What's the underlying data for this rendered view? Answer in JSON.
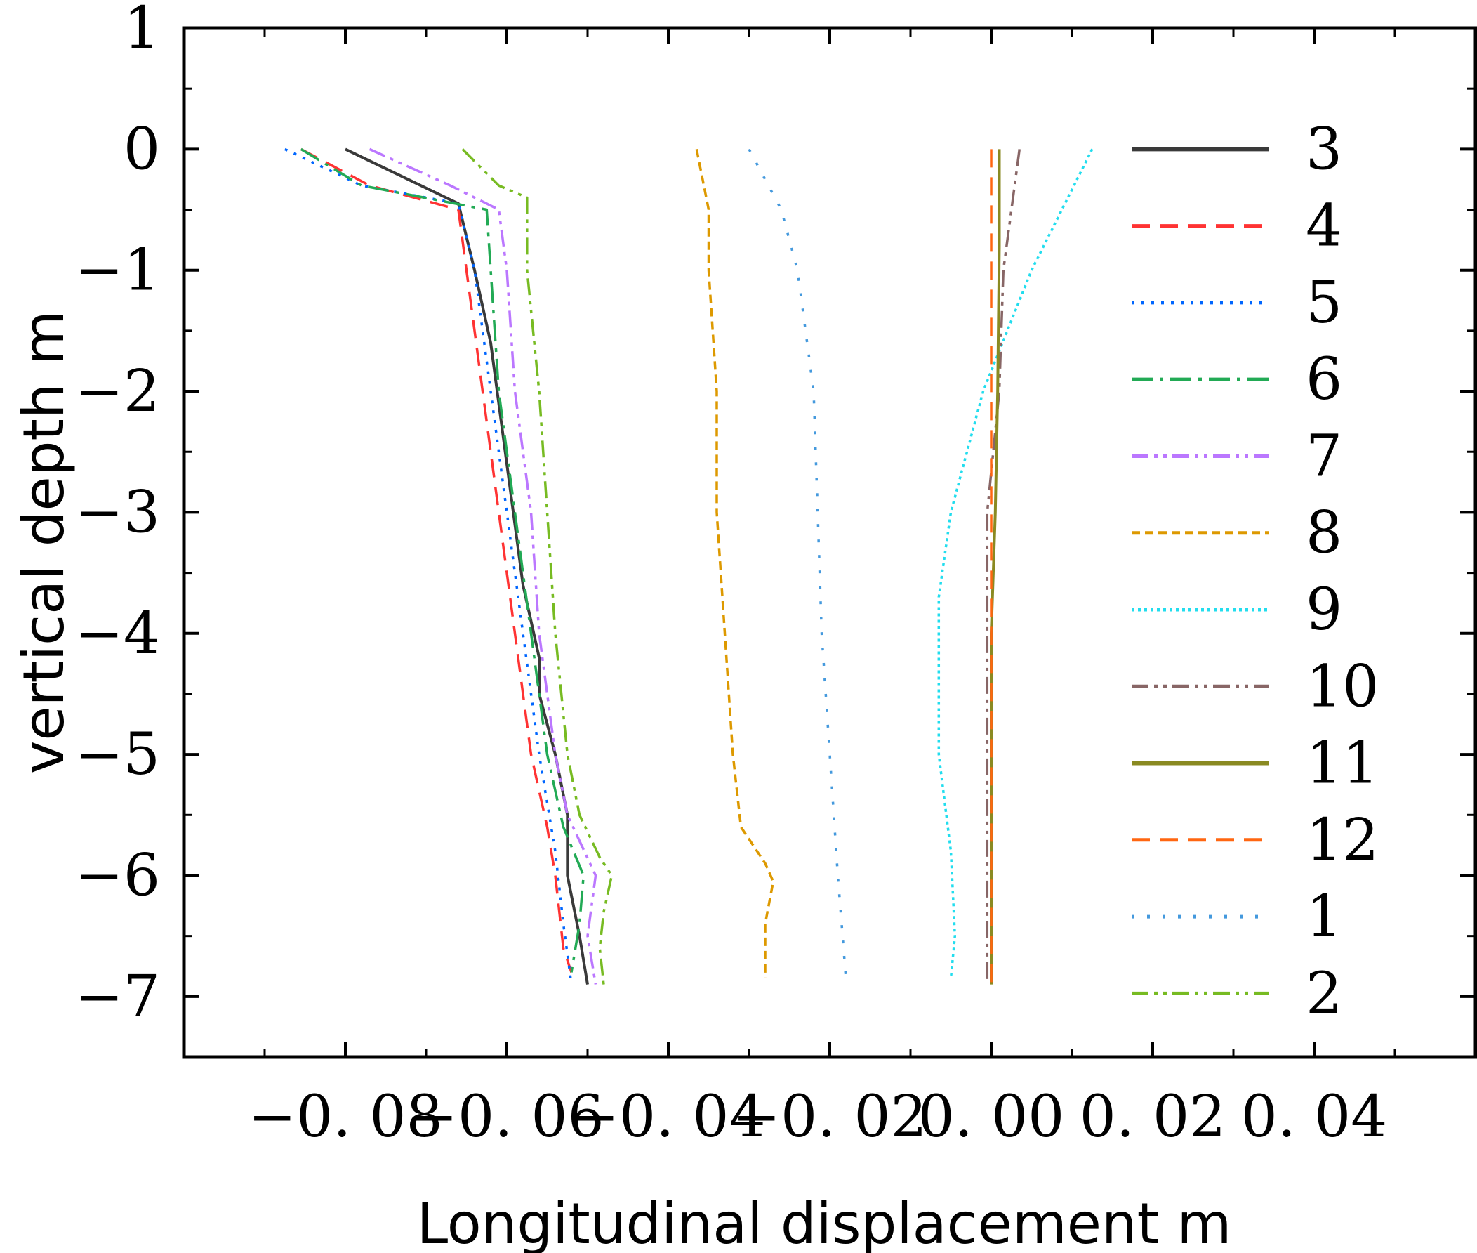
{
  "chart_data": {
    "type": "line",
    "title": "",
    "xlabel": "Longitudinal displacement m",
    "ylabel": "vertical depth m",
    "xlim": [
      -0.1,
      0.06
    ],
    "ylim": [
      -7.5,
      1
    ],
    "x_ticks": [
      -0.08,
      -0.06,
      -0.04,
      -0.02,
      0.0,
      0.02,
      0.04
    ],
    "x_tick_labels": [
      "−0. 08",
      "−0. 06",
      "−0. 04",
      "−0. 02",
      "0. 00",
      "0. 02",
      "0. 04"
    ],
    "y_ticks": [
      1,
      0,
      -1,
      -2,
      -3,
      -4,
      -5,
      -6,
      -7
    ],
    "y_tick_labels": [
      "1",
      "0",
      "−1",
      "−2",
      "−3",
      "−4",
      "−5",
      "−6",
      "−7"
    ],
    "grid": false,
    "legend_position": "right",
    "series": [
      {
        "name": "3",
        "color": "#3a3a3a",
        "dash": "solid",
        "points": [
          [
            -0.08,
            0
          ],
          [
            -0.066,
            -0.45
          ],
          [
            -0.064,
            -1
          ],
          [
            -0.062,
            -1.6
          ],
          [
            -0.06,
            -2.6
          ],
          [
            -0.058,
            -3.6
          ],
          [
            -0.056,
            -4.2
          ],
          [
            -0.056,
            -4.5
          ],
          [
            -0.054,
            -5
          ],
          [
            -0.0525,
            -5.5
          ],
          [
            -0.0525,
            -6
          ],
          [
            -0.051,
            -6.5
          ],
          [
            -0.05,
            -6.9
          ]
        ]
      },
      {
        "name": "4",
        "color": "#ff3333",
        "dash": "long-dash",
        "points": [
          [
            -0.0855,
            0
          ],
          [
            -0.077,
            -0.3
          ],
          [
            -0.066,
            -0.5
          ],
          [
            -0.065,
            -1
          ],
          [
            -0.063,
            -2
          ],
          [
            -0.061,
            -3
          ],
          [
            -0.059,
            -4
          ],
          [
            -0.057,
            -5
          ],
          [
            -0.055,
            -5.6
          ],
          [
            -0.054,
            -6
          ],
          [
            -0.053,
            -6.6
          ],
          [
            -0.052,
            -6.8
          ]
        ]
      },
      {
        "name": "5",
        "color": "#0066ff",
        "dash": "dot",
        "points": [
          [
            -0.0875,
            0
          ],
          [
            -0.078,
            -0.3
          ],
          [
            -0.066,
            -0.45
          ],
          [
            -0.064,
            -1
          ],
          [
            -0.062,
            -2
          ],
          [
            -0.06,
            -3
          ],
          [
            -0.058,
            -4
          ],
          [
            -0.056,
            -5
          ],
          [
            -0.054,
            -5.8
          ],
          [
            -0.053,
            -6.4
          ],
          [
            -0.052,
            -6.9
          ]
        ]
      },
      {
        "name": "6",
        "color": "#22aa55",
        "dash": "dash-dot",
        "points": [
          [
            -0.0855,
            0
          ],
          [
            -0.078,
            -0.3
          ],
          [
            -0.0625,
            -0.5
          ],
          [
            -0.062,
            -1
          ],
          [
            -0.061,
            -2
          ],
          [
            -0.059,
            -3
          ],
          [
            -0.057,
            -4
          ],
          [
            -0.055,
            -5
          ],
          [
            -0.053,
            -5.6
          ],
          [
            -0.0505,
            -6
          ],
          [
            -0.051,
            -6.4
          ],
          [
            -0.052,
            -6.8
          ]
        ]
      },
      {
        "name": "7",
        "color": "#bb77ff",
        "dash": "dash-dot-dot",
        "points": [
          [
            -0.077,
            0
          ],
          [
            -0.067,
            -0.3
          ],
          [
            -0.061,
            -0.5
          ],
          [
            -0.06,
            -1
          ],
          [
            -0.059,
            -2
          ],
          [
            -0.057,
            -3
          ],
          [
            -0.056,
            -4
          ],
          [
            -0.054,
            -5
          ],
          [
            -0.0525,
            -5.5
          ],
          [
            -0.049,
            -6
          ],
          [
            -0.05,
            -6.5
          ],
          [
            -0.049,
            -6.9
          ]
        ]
      },
      {
        "name": "8",
        "color": "#dd9900",
        "dash": "short-dash",
        "points": [
          [
            -0.0365,
            0
          ],
          [
            -0.035,
            -0.5
          ],
          [
            -0.035,
            -1
          ],
          [
            -0.034,
            -2
          ],
          [
            -0.034,
            -3
          ],
          [
            -0.033,
            -4
          ],
          [
            -0.032,
            -5
          ],
          [
            -0.031,
            -5.6
          ],
          [
            -0.028,
            -5.9
          ],
          [
            -0.027,
            -6.05
          ],
          [
            -0.028,
            -6.4
          ],
          [
            -0.028,
            -6.85
          ]
        ]
      },
      {
        "name": "9",
        "color": "#22ddee",
        "dash": "dense-dot",
        "points": [
          [
            0.0125,
            0
          ],
          [
            0.005,
            -1
          ],
          [
            -0.001,
            -2
          ],
          [
            -0.005,
            -3
          ],
          [
            -0.0065,
            -3.7
          ],
          [
            -0.0065,
            -5
          ],
          [
            -0.005,
            -5.8
          ],
          [
            -0.0045,
            -6.5
          ],
          [
            -0.005,
            -6.85
          ]
        ]
      },
      {
        "name": "10",
        "color": "#886666",
        "dash": "dash-dot-dot",
        "points": [
          [
            0.0035,
            0
          ],
          [
            0.0025,
            -0.5
          ],
          [
            0.0015,
            -1
          ],
          [
            0.001,
            -2
          ],
          [
            -0.0005,
            -3
          ],
          [
            -0.0005,
            -4
          ],
          [
            -0.0005,
            -5
          ],
          [
            -0.0005,
            -6
          ],
          [
            -0.0005,
            -6.9
          ]
        ]
      },
      {
        "name": "11",
        "color": "#8a8a22",
        "dash": "solid",
        "points": [
          [
            0.001,
            0
          ],
          [
            0.001,
            -0.8
          ],
          [
            0.0008,
            -2
          ],
          [
            0.0005,
            -3
          ],
          [
            0.0,
            -4
          ],
          [
            0.0,
            -5.5
          ],
          [
            0.0,
            -6
          ],
          [
            0.0,
            -6.9
          ]
        ]
      },
      {
        "name": "12",
        "color": "#ff6611",
        "dash": "long-dash",
        "points": [
          [
            0.0,
            0
          ],
          [
            0.0,
            -1
          ],
          [
            0.0,
            -2
          ],
          [
            0.0,
            -3
          ],
          [
            0.0,
            -4
          ],
          [
            0.0,
            -5
          ],
          [
            0.0,
            -6
          ],
          [
            0.0,
            -6.9
          ]
        ]
      },
      {
        "name": "1",
        "color": "#4499dd",
        "dash": "sparse-dot",
        "points": [
          [
            -0.03,
            0
          ],
          [
            -0.026,
            -0.5
          ],
          [
            -0.024,
            -1
          ],
          [
            -0.022,
            -2
          ],
          [
            -0.0215,
            -3
          ],
          [
            -0.021,
            -4
          ],
          [
            -0.02,
            -5
          ],
          [
            -0.019,
            -6
          ],
          [
            -0.018,
            -6.85
          ]
        ]
      },
      {
        "name": "2",
        "color": "#77bb22",
        "dash": "dash-dot-dot",
        "points": [
          [
            -0.0655,
            0
          ],
          [
            -0.061,
            -0.3
          ],
          [
            -0.0575,
            -0.4
          ],
          [
            -0.0575,
            -1
          ],
          [
            -0.056,
            -2
          ],
          [
            -0.055,
            -3
          ],
          [
            -0.054,
            -4
          ],
          [
            -0.0525,
            -5
          ],
          [
            -0.051,
            -5.5
          ],
          [
            -0.0485,
            -5.85
          ],
          [
            -0.047,
            -6
          ],
          [
            -0.048,
            -6.3
          ],
          [
            -0.0485,
            -6.6
          ],
          [
            -0.048,
            -6.9
          ]
        ]
      }
    ]
  }
}
